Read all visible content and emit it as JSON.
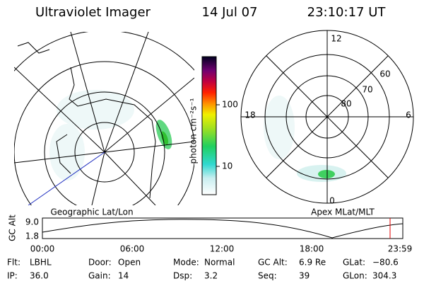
{
  "header": {
    "instrument": "Ultraviolet Imager",
    "date": "14 Jul 07",
    "time": "23:10:17 UT"
  },
  "left_panel": {
    "label": "Geographic Lat/Lon"
  },
  "colorbar": {
    "label": "photon cm⁻²s⁻¹",
    "ticks": [
      "100",
      "10"
    ]
  },
  "right_panel": {
    "label": "Apex MLat/MLT",
    "mlt_labels": {
      "top": "12",
      "left": "18",
      "right": "6",
      "bottom": "0"
    },
    "lat_labels": [
      "60",
      "70",
      "80"
    ]
  },
  "altitude_plot": {
    "y_label": "GC Alt",
    "y_ticks": [
      "9.0",
      "1.8"
    ],
    "x_ticks": [
      "00:00",
      "06:00",
      "12:00",
      "18:00",
      "23:59"
    ]
  },
  "info": {
    "rows": [
      [
        {
          "label": "Flt:",
          "value": "LBHL"
        },
        {
          "label": "Door:",
          "value": "Open"
        },
        {
          "label": "Mode:",
          "value": "Normal"
        },
        {
          "label": "GC Alt:",
          "value": "6.9 Re"
        },
        {
          "label": "GLat:",
          "value": "−80.6"
        }
      ],
      [
        {
          "label": "IP:",
          "value": "36.0"
        },
        {
          "label": "Gain:",
          "value": "14"
        },
        {
          "label": "Dsp:",
          "value": "3.2"
        },
        {
          "label": "Seq:",
          "value": "39"
        },
        {
          "label": "GLon:",
          "value": "304.3"
        }
      ]
    ]
  }
}
